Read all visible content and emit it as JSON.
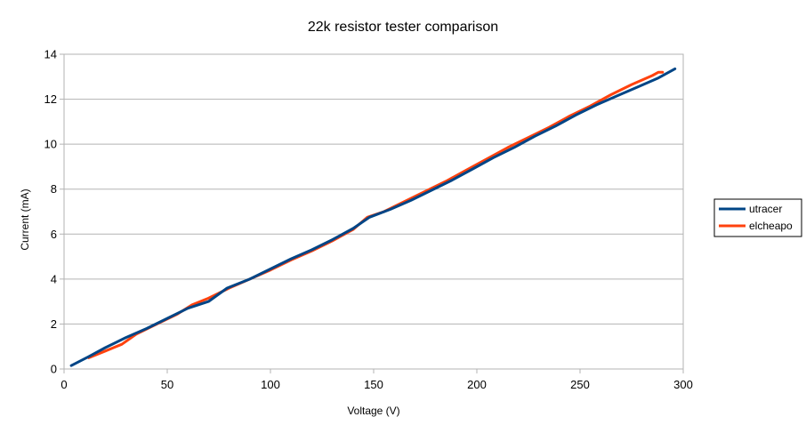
{
  "chart_data": {
    "type": "line",
    "title": "22k resistor tester comparison",
    "xlabel": "Voltage (V)",
    "ylabel": "Current (mA)",
    "xlim": [
      0,
      300
    ],
    "ylim": [
      0,
      14
    ],
    "xticks": [
      0,
      50,
      100,
      150,
      200,
      250,
      300
    ],
    "yticks": [
      0,
      2,
      4,
      6,
      8,
      10,
      12,
      14
    ],
    "grid": "horizontal",
    "legend_position": "right",
    "series": [
      {
        "name": "utracer",
        "color": "#004586",
        "x": [
          3.5,
          12,
          20,
          30,
          40,
          50,
          60,
          70,
          79,
          90,
          100,
          110,
          120,
          130,
          140,
          148,
          158,
          168,
          178,
          188,
          198,
          208,
          218,
          228,
          238,
          248,
          258,
          268,
          278,
          288,
          296
        ],
        "y": [
          0.15,
          0.55,
          0.95,
          1.4,
          1.8,
          2.25,
          2.7,
          3.0,
          3.6,
          4.0,
          4.45,
          4.9,
          5.3,
          5.75,
          6.25,
          6.75,
          7.1,
          7.5,
          7.95,
          8.4,
          8.9,
          9.4,
          9.85,
          10.35,
          10.8,
          11.3,
          11.75,
          12.15,
          12.55,
          12.95,
          13.35
        ]
      },
      {
        "name": "elcheapo",
        "color": "#ff420e",
        "x": [
          12,
          20,
          28,
          35,
          45,
          55,
          62,
          70,
          80,
          90,
          100,
          110,
          120,
          130,
          140,
          147,
          155,
          165,
          175,
          185,
          195,
          205,
          215,
          225,
          235,
          245,
          255,
          265,
          275,
          285,
          288,
          290
        ],
        "y": [
          0.5,
          0.8,
          1.1,
          1.55,
          2.0,
          2.45,
          2.85,
          3.15,
          3.6,
          4.0,
          4.4,
          4.85,
          5.25,
          5.7,
          6.2,
          6.75,
          7.0,
          7.45,
          7.9,
          8.35,
          8.85,
          9.35,
          9.85,
          10.3,
          10.75,
          11.25,
          11.7,
          12.2,
          12.65,
          13.05,
          13.2,
          13.2
        ]
      }
    ]
  }
}
